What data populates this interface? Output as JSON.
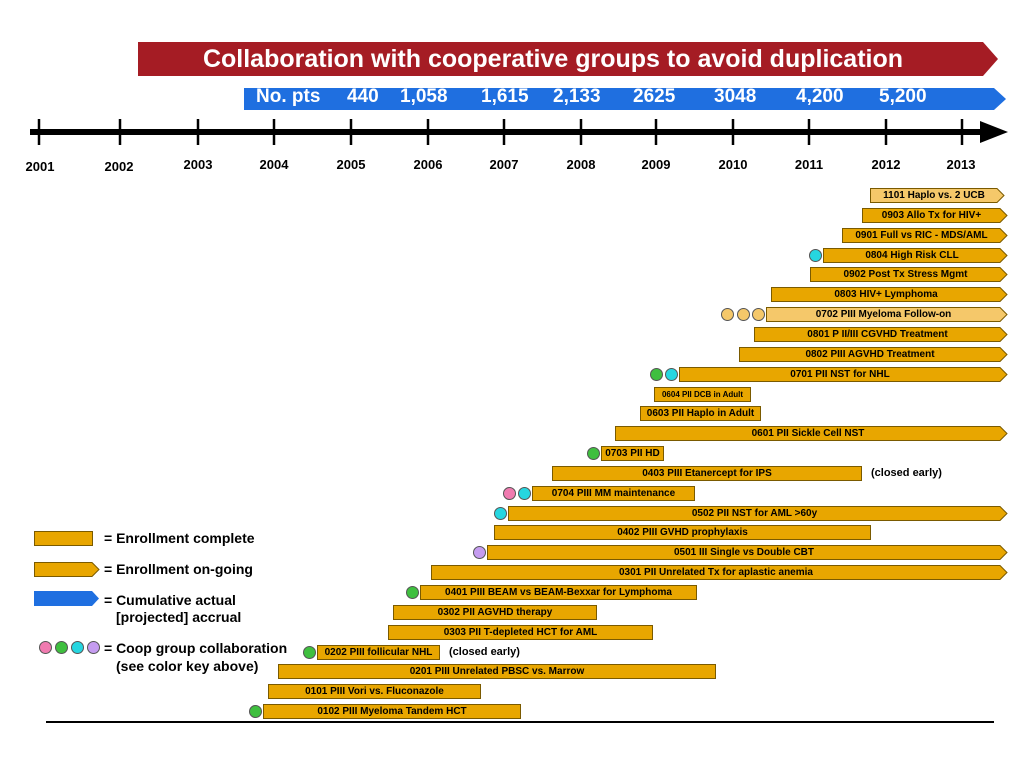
{
  "title": "Collaboration with cooperative groups to avoid duplication",
  "accrual": {
    "label": "No. pts",
    "values": [
      "440",
      "1,058",
      "1,615",
      "2,133",
      "2625",
      "3048",
      "4,200",
      "5,200"
    ]
  },
  "years": [
    "2001",
    "2002",
    "2003",
    "2004",
    "2005",
    "2006",
    "2007",
    "2008",
    "2009",
    "2010",
    "2011",
    "2012",
    "2013"
  ],
  "colors": {
    "title_banner": "#a51c24",
    "accrual_banner": "#1f6fe0",
    "bar_fill": "#e8a600",
    "bar_light": "#f5c86a",
    "bar_border": "#7a5a00",
    "coop_pink": "#f07bb0",
    "coop_green": "#3fbf3f",
    "coop_cyan": "#26d6e0",
    "coop_purple": "#c59cf0",
    "coop_peach": "#f5c86a"
  },
  "trials": [
    {
      "label": "1101 Haplo vs. 2 UCB",
      "status": "ongoing",
      "light": true,
      "dots": []
    },
    {
      "label": "0903 Allo Tx for HIV+",
      "status": "ongoing",
      "dots": []
    },
    {
      "label": "0901 Full vs RIC - MDS/AML",
      "status": "ongoing",
      "dots": []
    },
    {
      "label": "0804 High Risk CLL",
      "status": "ongoing",
      "dots": [
        "cyan"
      ]
    },
    {
      "label": "0902 Post Tx Stress Mgmt",
      "status": "ongoing",
      "dots": []
    },
    {
      "label": "0803 HIV+ Lymphoma",
      "status": "ongoing",
      "dots": []
    },
    {
      "label": "0702 PIII Myeloma Follow-on",
      "status": "ongoing",
      "light": true,
      "dots": [
        "peach",
        "peach",
        "peach"
      ]
    },
    {
      "label": "0801 P II/III CGVHD Treatment",
      "status": "ongoing",
      "dots": []
    },
    {
      "label": "0802 PIII AGVHD Treatment",
      "status": "ongoing",
      "dots": []
    },
    {
      "label": "0701 PII NST for NHL",
      "status": "ongoing",
      "dots": [
        "green",
        "cyan"
      ]
    },
    {
      "label": "0604 PII DCB in Adult",
      "status": "complete",
      "small": true,
      "dots": []
    },
    {
      "label": "0603 PII Haplo in Adult",
      "status": "complete",
      "dots": []
    },
    {
      "label": "0601 PII Sickle Cell NST",
      "status": "ongoing",
      "dots": []
    },
    {
      "label": "0703 PII HD",
      "status": "complete",
      "dots": [
        "green"
      ]
    },
    {
      "label": "0403 PIII Etanercept for IPS",
      "status": "complete",
      "note": "(closed early)",
      "dots": []
    },
    {
      "label": "0704 PIII MM maintenance",
      "status": "complete",
      "dots": [
        "pink",
        "cyan"
      ]
    },
    {
      "label": "0502 PII NST for AML >60y",
      "status": "ongoing",
      "dots": [
        "cyan"
      ]
    },
    {
      "label": "0402 PIII GVHD prophylaxis",
      "status": "complete",
      "dots": []
    },
    {
      "label": "0501 III Single vs Double CBT",
      "status": "ongoing",
      "dots": [
        "purple"
      ]
    },
    {
      "label": "0301 PII Unrelated Tx for aplastic anemia",
      "status": "ongoing",
      "dots": []
    },
    {
      "label": "0401 PIII BEAM vs BEAM-Bexxar for Lymphoma",
      "status": "complete",
      "dots": [
        "green"
      ]
    },
    {
      "label": "0302 PII AGVHD therapy",
      "status": "complete",
      "dots": []
    },
    {
      "label": "0303 PII T-depleted HCT for AML",
      "status": "complete",
      "dots": []
    },
    {
      "label": "0202 PIII follicular NHL",
      "status": "complete",
      "note": "(closed early)",
      "dots": [
        "green"
      ]
    },
    {
      "label": "0201 PIII Unrelated PBSC vs. Marrow",
      "status": "complete",
      "dots": []
    },
    {
      "label": "0101 PIII Vori vs. Fluconazole",
      "status": "complete",
      "dots": []
    },
    {
      "label": "0102 PIII Myeloma Tandem HCT",
      "status": "complete",
      "dots": [
        "green"
      ]
    }
  ],
  "legend": {
    "complete": "= Enrollment complete",
    "ongoing": "= Enrollment on-going",
    "accrual_line1": "= Cumulative actual",
    "accrual_line2": "[projected] accrual",
    "coop_line1": "= Coop group collaboration",
    "coop_line2": "(see color key above)"
  }
}
